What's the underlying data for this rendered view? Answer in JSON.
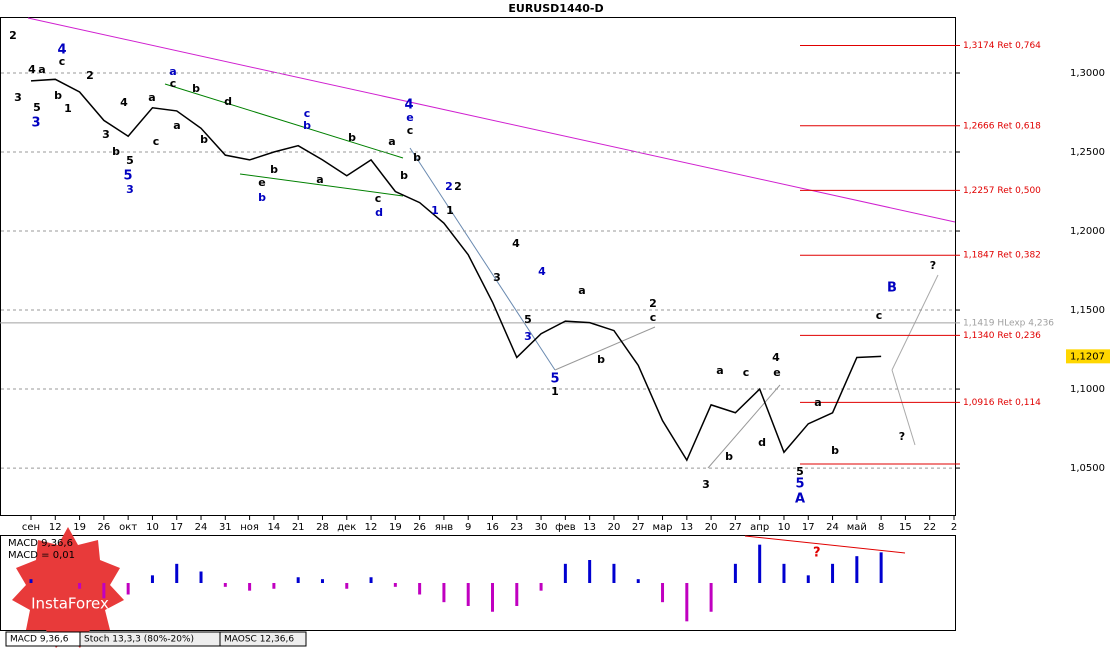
{
  "chart_data": {
    "type": "line",
    "title": "EURUSD1440-D",
    "categories": [
      "сен",
      "12",
      "19",
      "26",
      "окт",
      "10",
      "17",
      "24",
      "31",
      "ноя",
      "14",
      "21",
      "28",
      "дек",
      "12",
      "19",
      "26",
      "янв",
      "9",
      "16",
      "23",
      "30",
      "фев",
      "13",
      "20",
      "27",
      "мар",
      "13",
      "20",
      "27",
      "апр",
      "10",
      "17",
      "24",
      "май",
      "8",
      "15",
      "22",
      "2"
    ],
    "series": [
      {
        "name": "EURUSD",
        "color": "#000000",
        "values": [
          1.295,
          1.296,
          1.288,
          1.27,
          1.26,
          1.278,
          1.276,
          1.265,
          1.248,
          1.245,
          1.25,
          1.254,
          1.245,
          1.235,
          1.245,
          1.225,
          1.218,
          1.205,
          1.185,
          1.155,
          1.12,
          1.135,
          1.143,
          1.142,
          1.137,
          1.115,
          1.08,
          1.055,
          1.09,
          1.085,
          1.1,
          1.06,
          1.078,
          1.085,
          1.12,
          1.1207,
          null,
          null,
          null
        ]
      }
    ],
    "ylim": [
      1.0203,
      1.3348
    ],
    "yticks": [
      {
        "value": 1.05,
        "label": "1,0500"
      },
      {
        "value": 1.1,
        "label": "1,1000"
      },
      {
        "value": 1.15,
        "label": "1,1500"
      },
      {
        "value": 1.2,
        "label": "1,2000"
      },
      {
        "value": 1.25,
        "label": "1,2500"
      },
      {
        "value": 1.3,
        "label": "1,3000"
      }
    ],
    "grid": true,
    "current_price": {
      "value": 1.1207,
      "label": "1,1207"
    },
    "levels": [
      {
        "value": 1.3174,
        "label": "1,3174 Ret 0,764",
        "color": "#e00000"
      },
      {
        "value": 1.2666,
        "label": "1,2666 Ret 0,618",
        "color": "#e00000"
      },
      {
        "value": 1.2257,
        "label": "1,2257 Ret 0,500",
        "color": "#e00000"
      },
      {
        "value": 1.1847,
        "label": "1,1847 Ret 0,382",
        "color": "#e00000"
      },
      {
        "value": 1.1419,
        "label": "1,1419 HLexp 4,236",
        "color": "#a0a0a0"
      },
      {
        "value": 1.134,
        "label": "1,1340 Ret 0,236",
        "color": "#e00000"
      },
      {
        "value": 1.0916,
        "label": "1,0916 Ret 0,114",
        "color": "#e00000"
      }
    ],
    "wave_labels": [
      {
        "text": "2",
        "color": "#000"
      },
      {
        "text": "4",
        "color": "#0000c0"
      },
      {
        "text": "c",
        "color": "#000"
      },
      {
        "text": "a",
        "color": "#000"
      },
      {
        "text": "4",
        "color": "#000"
      },
      {
        "text": "3",
        "color": "#000"
      },
      {
        "text": "5",
        "color": "#000"
      },
      {
        "text": "3",
        "color": "#0000c0"
      },
      {
        "text": "b",
        "color": "#000"
      },
      {
        "text": "1",
        "color": "#000"
      },
      {
        "text": "2",
        "color": "#000"
      },
      {
        "text": "4",
        "color": "#000"
      },
      {
        "text": "a",
        "color": "#000"
      },
      {
        "text": "3",
        "color": "#000"
      },
      {
        "text": "b",
        "color": "#000"
      },
      {
        "text": "5",
        "color": "#000"
      },
      {
        "text": "5",
        "color": "#0000c0"
      },
      {
        "text": "3",
        "color": "#0000c0"
      },
      {
        "text": "a",
        "color": "#0000c0"
      },
      {
        "text": "c",
        "color": "#000"
      },
      {
        "text": "b",
        "color": "#000"
      },
      {
        "text": "a",
        "color": "#000"
      },
      {
        "text": "d",
        "color": "#000"
      },
      {
        "text": "b",
        "color": "#000"
      },
      {
        "text": "c",
        "color": "#000"
      },
      {
        "text": "e",
        "color": "#000"
      },
      {
        "text": "b",
        "color": "#0000c0"
      },
      {
        "text": "c",
        "color": "#0000c0"
      },
      {
        "text": "b",
        "color": "#0000c0"
      },
      {
        "text": "b",
        "color": "#000"
      },
      {
        "text": "a",
        "color": "#000"
      },
      {
        "text": "b",
        "color": "#000"
      },
      {
        "text": "c",
        "color": "#000"
      },
      {
        "text": "d",
        "color": "#0000c0"
      },
      {
        "text": "a",
        "color": "#000"
      },
      {
        "text": "b",
        "color": "#000"
      },
      {
        "text": "4",
        "color": "#0000c0"
      },
      {
        "text": "e",
        "color": "#0000c0"
      },
      {
        "text": "c",
        "color": "#000"
      },
      {
        "text": "b",
        "color": "#000"
      },
      {
        "text": "1",
        "color": "#0000c0"
      },
      {
        "text": "1",
        "color": "#000"
      },
      {
        "text": "2",
        "color": "#0000c0"
      },
      {
        "text": "2",
        "color": "#000"
      },
      {
        "text": "4",
        "color": "#000"
      },
      {
        "text": "3",
        "color": "#000"
      },
      {
        "text": "5",
        "color": "#000"
      },
      {
        "text": "3",
        "color": "#0000c0"
      },
      {
        "text": "4",
        "color": "#0000c0"
      },
      {
        "text": "5",
        "color": "#0000c0"
      },
      {
        "text": "1",
        "color": "#000"
      },
      {
        "text": "a",
        "color": "#000"
      },
      {
        "text": "b",
        "color": "#000"
      },
      {
        "text": "2",
        "color": "#000"
      },
      {
        "text": "c",
        "color": "#000"
      },
      {
        "text": "3",
        "color": "#000"
      },
      {
        "text": "a",
        "color": "#000"
      },
      {
        "text": "b",
        "color": "#000"
      },
      {
        "text": "c",
        "color": "#000"
      },
      {
        "text": "d",
        "color": "#000"
      },
      {
        "text": "4",
        "color": "#000"
      },
      {
        "text": "e",
        "color": "#000"
      },
      {
        "text": "5",
        "color": "#000"
      },
      {
        "text": "5",
        "color": "#0000c0"
      },
      {
        "text": "A",
        "color": "#0000c0"
      },
      {
        "text": "a",
        "color": "#000"
      },
      {
        "text": "b",
        "color": "#000"
      },
      {
        "text": "c",
        "color": "#000"
      },
      {
        "text": "B",
        "color": "#0000c0"
      },
      {
        "text": "?",
        "color": "#000"
      },
      {
        "text": "?",
        "color": "#000"
      }
    ],
    "macd": {
      "title": "MACD 9,36,6",
      "value_label": "MACD = 0,01",
      "note": "?",
      "ylim": [
        -0.024,
        0.024
      ],
      "values": [
        0.002,
        0,
        -0.003,
        -0.008,
        -0.006,
        0.004,
        0.01,
        0.006,
        -0.002,
        -0.004,
        -0.003,
        0.003,
        0.002,
        -0.003,
        0.003,
        -0.002,
        -0.006,
        -0.01,
        -0.012,
        -0.015,
        -0.012,
        -0.004,
        0.01,
        0.012,
        0.01,
        0.002,
        -0.01,
        -0.02,
        -0.015,
        0.01,
        0.02,
        0.01,
        0.004,
        0.01,
        0.014,
        0.016,
        null,
        null,
        null
      ],
      "positive_color": "#0000d0",
      "negative_color": "#c000c0"
    },
    "tabs": [
      "MACD 9,36,6",
      "Stoch 13,3,3 (80%-20%)",
      "MAOSC 12,36,6"
    ],
    "logo": "InstaForex"
  }
}
